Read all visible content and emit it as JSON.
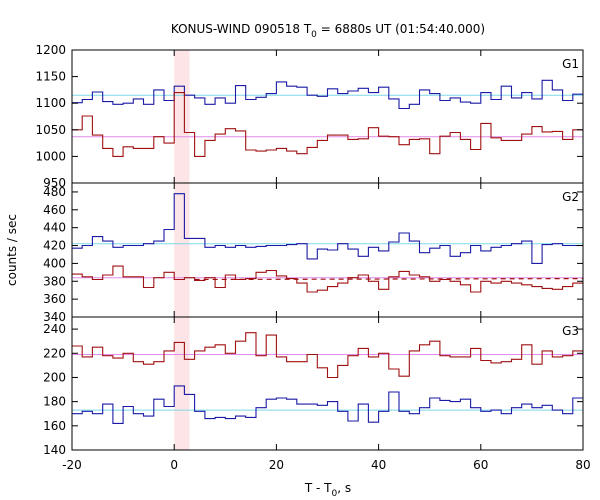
{
  "title": {
    "main": "KONUS-WIND 090518 T",
    "sub": "0",
    "rest": " = 6880s UT (01:54:40.000)"
  },
  "xlabel": {
    "main": "T - T",
    "sub": "0",
    "rest": ", s"
  },
  "ylabel": "counts / sec",
  "colors": {
    "blue": "#1a1aa6",
    "red": "#a01010",
    "cyan": "#7fd8e8",
    "violet": "#e08ce8",
    "highlight": "#fde4e6"
  },
  "chart_data": {
    "type": "line",
    "x": {
      "range": [
        -20,
        80
      ],
      "ticks": [
        -20,
        0,
        20,
        40,
        60,
        80
      ]
    },
    "bin_edges": [
      -20,
      -18,
      -16,
      -14,
      -12,
      -10,
      -8,
      -6,
      -4,
      -2,
      0,
      2,
      4,
      6,
      8,
      10,
      12,
      14,
      16,
      18,
      20,
      22,
      24,
      26,
      28,
      30,
      32,
      34,
      36,
      38,
      40,
      42,
      44,
      46,
      48,
      50,
      52,
      54,
      56,
      58,
      60,
      62,
      64,
      66,
      68,
      70,
      72,
      74,
      76,
      78,
      80
    ],
    "highlight_interval": [
      0,
      3
    ],
    "panels": [
      {
        "name": "G1",
        "ylim": [
          950,
          1200
        ],
        "yticks": [
          950,
          1000,
          1050,
          1100,
          1150,
          1200
        ],
        "series": [
          {
            "color_key": "blue",
            "values": [
              1101,
              1107,
              1121,
              1103,
              1098,
              1100,
              1108,
              1098,
              1125,
              1105,
              1132,
              1115,
              1110,
              1098,
              1110,
              1100,
              1133,
              1107,
              1111,
              1118,
              1140,
              1132,
              1130,
              1115,
              1113,
              1127,
              1118,
              1123,
              1128,
              1120,
              1130,
              1108,
              1090,
              1098,
              1125,
              1118,
              1105,
              1110,
              1102,
              1100,
              1120,
              1107,
              1132,
              1110,
              1120,
              1108,
              1143,
              1125,
              1105,
              1117
            ]
          },
          {
            "color_key": "red",
            "values": [
              1050,
              1076,
              1040,
              1015,
              1000,
              1018,
              1015,
              1015,
              1037,
              1025,
              1120,
              1045,
              1000,
              1030,
              1042,
              1052,
              1048,
              1012,
              1010,
              1012,
              1015,
              1010,
              1005,
              1017,
              1030,
              1040,
              1040,
              1032,
              1033,
              1054,
              1038,
              1037,
              1022,
              1032,
              1033,
              1005,
              1038,
              1045,
              1032,
              1013,
              1062,
              1035,
              1030,
              1030,
              1042,
              1056,
              1046,
              1047,
              1032,
              1050
            ]
          }
        ],
        "baselines": [
          {
            "color_key": "cyan",
            "value": 1115
          },
          {
            "color_key": "violet",
            "value": 1037
          }
        ]
      },
      {
        "name": "G2",
        "ylim": [
          340,
          490
        ],
        "yticks": [
          340,
          360,
          380,
          400,
          420,
          440,
          460,
          480
        ],
        "series": [
          {
            "color_key": "blue",
            "values": [
              417,
              420,
              430,
              425,
              418,
              420,
              420,
              422,
              425,
              438,
              478,
              428,
              428,
              418,
              420,
              418,
              420,
              418,
              419,
              420,
              420,
              421,
              422,
              405,
              416,
              415,
              422,
              416,
              408,
              418,
              414,
              424,
              434,
              425,
              412,
              417,
              420,
              408,
              412,
              420,
              414,
              418,
              420,
              422,
              425,
              400,
              421,
              422,
              420,
              420
            ]
          },
          {
            "color_key": "red",
            "values": [
              388,
              385,
              382,
              387,
              397,
              385,
              385,
              373,
              384,
              390,
              382,
              384,
              381,
              384,
              373,
              387,
              382,
              383,
              390,
              392,
              386,
              383,
              378,
              368,
              370,
              374,
              378,
              384,
              387,
              380,
              371,
              385,
              391,
              387,
              385,
              380,
              382,
              380,
              376,
              368,
              380,
              378,
              380,
              378,
              376,
              374,
              372,
              371,
              374,
              378
            ]
          }
        ],
        "baselines": [
          {
            "color_key": "cyan",
            "value": 422
          },
          {
            "color_key": "violet",
            "value": 384
          }
        ],
        "dashed_fit": {
          "color_key": "red",
          "x": [
            4,
            80
          ],
          "y": [
            382,
            383
          ]
        }
      },
      {
        "name": "G3",
        "ylim": [
          140,
          250
        ],
        "yticks": [
          140,
          160,
          180,
          200,
          220,
          240
        ],
        "series": [
          {
            "color_key": "red",
            "values": [
              226,
              217,
              225,
              218,
              216,
              220,
              213,
              211,
              213,
              222,
              229,
              215,
              222,
              225,
              227,
              220,
              230,
              237,
              218,
              235,
              217,
              213,
              213,
              219,
              208,
              200,
              210,
              218,
              224,
              217,
              220,
              207,
              201,
              222,
              227,
              230,
              218,
              217,
              217,
              224,
              214,
              212,
              213,
              215,
              227,
              211,
              222,
              217,
              218,
              222
            ]
          },
          {
            "color_key": "blue",
            "values": [
              170,
              172,
              170,
              178,
              162,
              176,
              170,
              168,
              182,
              176,
              193,
              186,
              172,
              166,
              167,
              166,
              168,
              167,
              175,
              182,
              183,
              182,
              178,
              178,
              177,
              180,
              172,
              164,
              178,
              163,
              172,
              188,
              172,
              170,
              175,
              183,
              181,
              180,
              182,
              175,
              172,
              173,
              170,
              175,
              178,
              175,
              177,
              173,
              170,
              183
            ]
          }
        ],
        "baselines": [
          {
            "color_key": "violet",
            "value": 219
          },
          {
            "color_key": "cyan",
            "value": 173
          }
        ]
      }
    ]
  }
}
